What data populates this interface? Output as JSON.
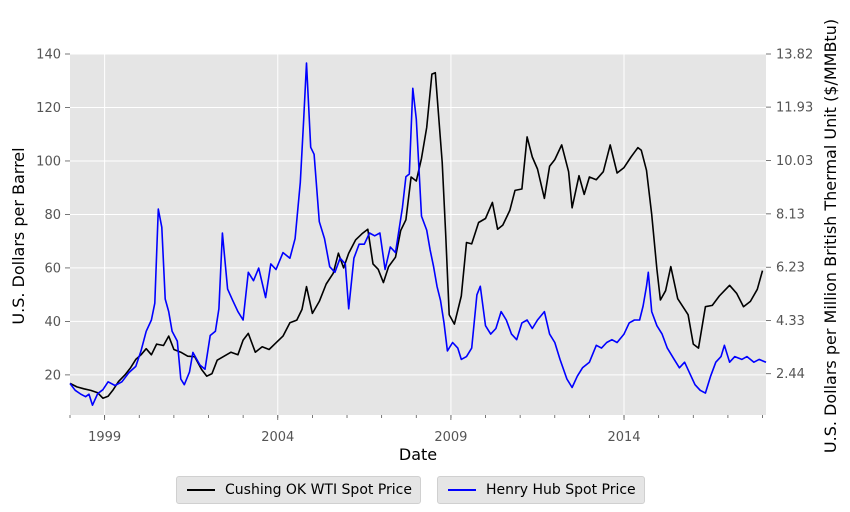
{
  "chart_data": {
    "type": "line",
    "xlabel": "Date",
    "ylabel_left": "U.S. Dollars per Barrel",
    "ylabel_right": "U.S. Dollars per Million British Thermal Unit ($/MMBtu)",
    "xlim": [
      1998.0,
      2018.1
    ],
    "ylim_left": [
      5,
      140
    ],
    "ylim_right": [
      0.97,
      13.82
    ],
    "x_ticks": [
      1999,
      2004,
      2009,
      2014
    ],
    "y_ticks_left": [
      20,
      40,
      60,
      80,
      100,
      120,
      140
    ],
    "y_ticks_right": [
      "2.44",
      "4.33",
      "6.23",
      "8.13",
      "10.03",
      "11.93",
      "13.82"
    ],
    "grid": true,
    "legend_position": "bottom-center",
    "series": [
      {
        "name": "Cushing OK WTI Spot Price",
        "axis": "left",
        "color": "#000000",
        "points": [
          [
            1998.0,
            16.8
          ],
          [
            1998.2,
            15.5
          ],
          [
            1998.4,
            14.8
          ],
          [
            1998.6,
            14.2
          ],
          [
            1998.8,
            13.3
          ],
          [
            1998.95,
            11.3
          ],
          [
            1999.1,
            12.0
          ],
          [
            1999.25,
            14.5
          ],
          [
            1999.4,
            17.5
          ],
          [
            1999.6,
            20.2
          ],
          [
            1999.75,
            22.7
          ],
          [
            1999.9,
            25.8
          ],
          [
            2000.05,
            27.5
          ],
          [
            2000.2,
            29.8
          ],
          [
            2000.35,
            27.5
          ],
          [
            2000.5,
            31.5
          ],
          [
            2000.7,
            31.0
          ],
          [
            2000.85,
            34.5
          ],
          [
            2001.0,
            29.5
          ],
          [
            2001.2,
            28.5
          ],
          [
            2001.4,
            27.0
          ],
          [
            2001.6,
            26.8
          ],
          [
            2001.8,
            22.0
          ],
          [
            2001.95,
            19.5
          ],
          [
            2002.1,
            20.5
          ],
          [
            2002.25,
            25.5
          ],
          [
            2002.45,
            27.0
          ],
          [
            2002.65,
            28.5
          ],
          [
            2002.85,
            27.5
          ],
          [
            2003.0,
            33.0
          ],
          [
            2003.15,
            35.5
          ],
          [
            2003.35,
            28.5
          ],
          [
            2003.55,
            30.5
          ],
          [
            2003.75,
            29.5
          ],
          [
            2003.95,
            32.0
          ],
          [
            2004.15,
            34.5
          ],
          [
            2004.35,
            39.5
          ],
          [
            2004.55,
            40.5
          ],
          [
            2004.7,
            44.5
          ],
          [
            2004.83,
            53.0
          ],
          [
            2005.0,
            43.0
          ],
          [
            2005.2,
            47.5
          ],
          [
            2005.4,
            54.0
          ],
          [
            2005.6,
            58.0
          ],
          [
            2005.75,
            65.5
          ],
          [
            2005.9,
            60.0
          ],
          [
            2006.05,
            65.5
          ],
          [
            2006.25,
            70.5
          ],
          [
            2006.45,
            73.0
          ],
          [
            2006.6,
            74.5
          ],
          [
            2006.75,
            61.5
          ],
          [
            2006.9,
            59.5
          ],
          [
            2007.05,
            54.5
          ],
          [
            2007.2,
            60.5
          ],
          [
            2007.4,
            64.0
          ],
          [
            2007.55,
            74.0
          ],
          [
            2007.7,
            78.0
          ],
          [
            2007.85,
            94.0
          ],
          [
            2008.0,
            92.5
          ],
          [
            2008.15,
            101.0
          ],
          [
            2008.3,
            112.5
          ],
          [
            2008.45,
            132.5
          ],
          [
            2008.55,
            133.0
          ],
          [
            2008.65,
            116.0
          ],
          [
            2008.75,
            99.5
          ],
          [
            2008.85,
            72.5
          ],
          [
            2008.95,
            42.5
          ],
          [
            2009.1,
            39.0
          ],
          [
            2009.3,
            49.5
          ],
          [
            2009.45,
            69.5
          ],
          [
            2009.6,
            69.0
          ],
          [
            2009.8,
            77.0
          ],
          [
            2010.0,
            78.5
          ],
          [
            2010.2,
            84.5
          ],
          [
            2010.35,
            74.5
          ],
          [
            2010.5,
            76.0
          ],
          [
            2010.7,
            81.5
          ],
          [
            2010.85,
            89.0
          ],
          [
            2011.05,
            89.5
          ],
          [
            2011.2,
            109.0
          ],
          [
            2011.35,
            101.5
          ],
          [
            2011.5,
            97.0
          ],
          [
            2011.7,
            86.0
          ],
          [
            2011.85,
            98.0
          ],
          [
            2012.0,
            100.5
          ],
          [
            2012.2,
            106.0
          ],
          [
            2012.4,
            96.0
          ],
          [
            2012.5,
            82.5
          ],
          [
            2012.7,
            94.5
          ],
          [
            2012.85,
            87.5
          ],
          [
            2013.0,
            94.0
          ],
          [
            2013.2,
            93.0
          ],
          [
            2013.4,
            96.0
          ],
          [
            2013.6,
            106.0
          ],
          [
            2013.8,
            95.5
          ],
          [
            2014.0,
            97.5
          ],
          [
            2014.2,
            101.5
          ],
          [
            2014.4,
            105.0
          ],
          [
            2014.5,
            104.0
          ],
          [
            2014.65,
            96.5
          ],
          [
            2014.8,
            80.0
          ],
          [
            2014.95,
            59.5
          ],
          [
            2015.05,
            48.0
          ],
          [
            2015.2,
            51.5
          ],
          [
            2015.35,
            60.5
          ],
          [
            2015.55,
            48.5
          ],
          [
            2015.7,
            45.5
          ],
          [
            2015.85,
            42.5
          ],
          [
            2016.0,
            31.5
          ],
          [
            2016.15,
            30.0
          ],
          [
            2016.35,
            45.5
          ],
          [
            2016.55,
            46.0
          ],
          [
            2016.75,
            49.5
          ],
          [
            2016.9,
            51.5
          ],
          [
            2017.05,
            53.5
          ],
          [
            2017.25,
            50.5
          ],
          [
            2017.45,
            45.5
          ],
          [
            2017.65,
            47.5
          ],
          [
            2017.85,
            52.0
          ],
          [
            2018.0,
            59.0
          ]
        ]
      },
      {
        "name": "Henry Hub Spot Price",
        "axis": "right",
        "color": "#0000ff",
        "points": [
          [
            1998.0,
            2.09
          ],
          [
            1998.15,
            1.85
          ],
          [
            1998.3,
            1.72
          ],
          [
            1998.45,
            1.62
          ],
          [
            1998.55,
            1.71
          ],
          [
            1998.65,
            1.32
          ],
          [
            1998.8,
            1.73
          ],
          [
            1998.95,
            1.87
          ],
          [
            1999.1,
            2.15
          ],
          [
            1999.3,
            2.02
          ],
          [
            1999.5,
            2.15
          ],
          [
            1999.7,
            2.48
          ],
          [
            1999.9,
            2.7
          ],
          [
            2000.05,
            3.25
          ],
          [
            2000.2,
            3.95
          ],
          [
            2000.35,
            4.35
          ],
          [
            2000.45,
            4.95
          ],
          [
            2000.55,
            8.3
          ],
          [
            2000.65,
            7.65
          ],
          [
            2000.75,
            5.1
          ],
          [
            2000.85,
            4.65
          ],
          [
            2000.95,
            3.95
          ],
          [
            2001.1,
            3.6
          ],
          [
            2001.2,
            2.25
          ],
          [
            2001.3,
            2.05
          ],
          [
            2001.45,
            2.5
          ],
          [
            2001.55,
            3.2
          ],
          [
            2001.75,
            2.75
          ],
          [
            2001.9,
            2.6
          ],
          [
            2002.05,
            3.8
          ],
          [
            2002.2,
            3.95
          ],
          [
            2002.3,
            4.75
          ],
          [
            2002.4,
            7.45
          ],
          [
            2002.55,
            5.45
          ],
          [
            2002.7,
            5.05
          ],
          [
            2002.85,
            4.65
          ],
          [
            2003.0,
            4.35
          ],
          [
            2003.15,
            6.05
          ],
          [
            2003.3,
            5.75
          ],
          [
            2003.45,
            6.2
          ],
          [
            2003.65,
            5.15
          ],
          [
            2003.8,
            6.35
          ],
          [
            2003.95,
            6.15
          ],
          [
            2004.15,
            6.75
          ],
          [
            2004.35,
            6.55
          ],
          [
            2004.5,
            7.25
          ],
          [
            2004.65,
            9.25
          ],
          [
            2004.75,
            11.5
          ],
          [
            2004.83,
            13.5
          ],
          [
            2004.95,
            10.5
          ],
          [
            2005.05,
            10.25
          ],
          [
            2005.2,
            7.85
          ],
          [
            2005.35,
            7.25
          ],
          [
            2005.5,
            6.25
          ],
          [
            2005.65,
            6.05
          ],
          [
            2005.8,
            6.55
          ],
          [
            2005.95,
            6.35
          ],
          [
            2006.05,
            4.75
          ],
          [
            2006.2,
            6.55
          ],
          [
            2006.35,
            7.05
          ],
          [
            2006.5,
            7.05
          ],
          [
            2006.65,
            7.45
          ],
          [
            2006.8,
            7.35
          ],
          [
            2006.95,
            7.45
          ],
          [
            2007.1,
            6.15
          ],
          [
            2007.25,
            6.95
          ],
          [
            2007.4,
            6.75
          ],
          [
            2007.6,
            8.35
          ],
          [
            2007.7,
            9.45
          ],
          [
            2007.8,
            9.55
          ],
          [
            2007.9,
            12.6
          ],
          [
            2008.0,
            11.5
          ],
          [
            2008.15,
            8.05
          ],
          [
            2008.3,
            7.55
          ],
          [
            2008.4,
            6.85
          ],
          [
            2008.5,
            6.25
          ],
          [
            2008.6,
            5.55
          ],
          [
            2008.7,
            5.05
          ],
          [
            2008.8,
            4.25
          ],
          [
            2008.9,
            3.25
          ],
          [
            2009.05,
            3.55
          ],
          [
            2009.2,
            3.35
          ],
          [
            2009.3,
            2.95
          ],
          [
            2009.45,
            3.05
          ],
          [
            2009.6,
            3.35
          ],
          [
            2009.75,
            5.25
          ],
          [
            2009.85,
            5.55
          ],
          [
            2010.0,
            4.15
          ],
          [
            2010.15,
            3.85
          ],
          [
            2010.3,
            4.05
          ],
          [
            2010.45,
            4.65
          ],
          [
            2010.6,
            4.35
          ],
          [
            2010.75,
            3.85
          ],
          [
            2010.9,
            3.65
          ],
          [
            2011.05,
            4.25
          ],
          [
            2011.2,
            4.35
          ],
          [
            2011.35,
            4.05
          ],
          [
            2011.5,
            4.35
          ],
          [
            2011.7,
            4.65
          ],
          [
            2011.85,
            3.85
          ],
          [
            2012.0,
            3.55
          ],
          [
            2012.15,
            2.95
          ],
          [
            2012.35,
            2.25
          ],
          [
            2012.5,
            1.95
          ],
          [
            2012.65,
            2.35
          ],
          [
            2012.8,
            2.65
          ],
          [
            2013.0,
            2.85
          ],
          [
            2013.2,
            3.45
          ],
          [
            2013.35,
            3.35
          ],
          [
            2013.5,
            3.55
          ],
          [
            2013.65,
            3.65
          ],
          [
            2013.8,
            3.55
          ],
          [
            2014.0,
            3.85
          ],
          [
            2014.15,
            4.25
          ],
          [
            2014.3,
            4.35
          ],
          [
            2014.45,
            4.35
          ],
          [
            2014.55,
            4.85
          ],
          [
            2014.65,
            5.55
          ],
          [
            2014.7,
            6.05
          ],
          [
            2014.8,
            4.65
          ],
          [
            2014.95,
            4.15
          ],
          [
            2015.1,
            3.85
          ],
          [
            2015.25,
            3.35
          ],
          [
            2015.45,
            2.95
          ],
          [
            2015.6,
            2.65
          ],
          [
            2015.75,
            2.85
          ],
          [
            2015.9,
            2.45
          ],
          [
            2016.05,
            2.05
          ],
          [
            2016.2,
            1.85
          ],
          [
            2016.35,
            1.75
          ],
          [
            2016.5,
            2.35
          ],
          [
            2016.65,
            2.85
          ],
          [
            2016.8,
            3.05
          ],
          [
            2016.9,
            3.45
          ],
          [
            2017.05,
            2.85
          ],
          [
            2017.2,
            3.05
          ],
          [
            2017.4,
            2.95
          ],
          [
            2017.55,
            3.05
          ],
          [
            2017.75,
            2.85
          ],
          [
            2017.9,
            2.95
          ],
          [
            2018.1,
            2.85
          ]
        ]
      }
    ]
  }
}
